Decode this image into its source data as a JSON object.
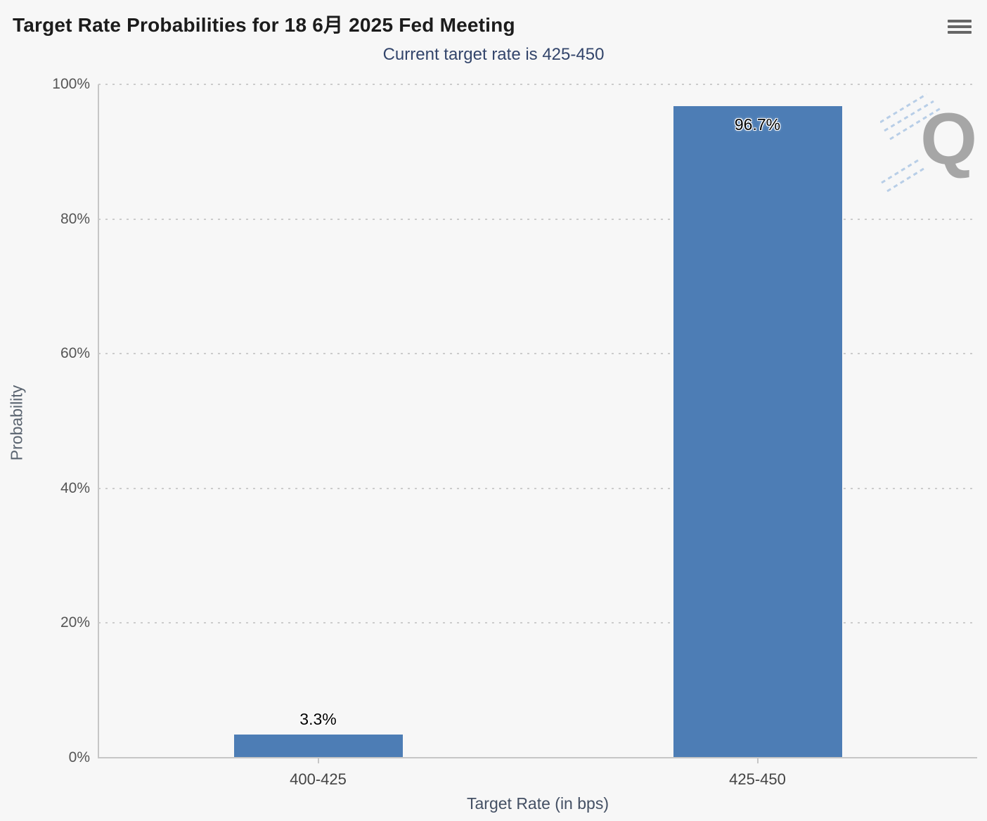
{
  "header": {
    "title": "Target Rate Probabilities for 18 6月 2025 Fed Meeting",
    "subtitle": "Current target rate is 425-450"
  },
  "menu": {
    "icon": "hamburger-menu-icon"
  },
  "watermark": {
    "letter": "Q",
    "stripe_color": "#7aa7d9",
    "letter_color": "#939393"
  },
  "chart_data": {
    "type": "bar",
    "title": "Target Rate Probabilities for 18 6月 2025 Fed Meeting",
    "subtitle": "Current target rate is 425-450",
    "categories": [
      "400-425",
      "425-450"
    ],
    "values": [
      3.3,
      96.7
    ],
    "data_labels": [
      "3.3%",
      "96.7%"
    ],
    "xlabel": "Target Rate (in bps)",
    "ylabel": "Probability",
    "ylim": [
      0,
      100
    ],
    "ytick_interval": 20,
    "yticks": [
      "0%",
      "20%",
      "40%",
      "60%",
      "80%",
      "100%"
    ],
    "grid": "horizontal-dotted",
    "legend": "none",
    "bar_color": "#4d7db5"
  }
}
